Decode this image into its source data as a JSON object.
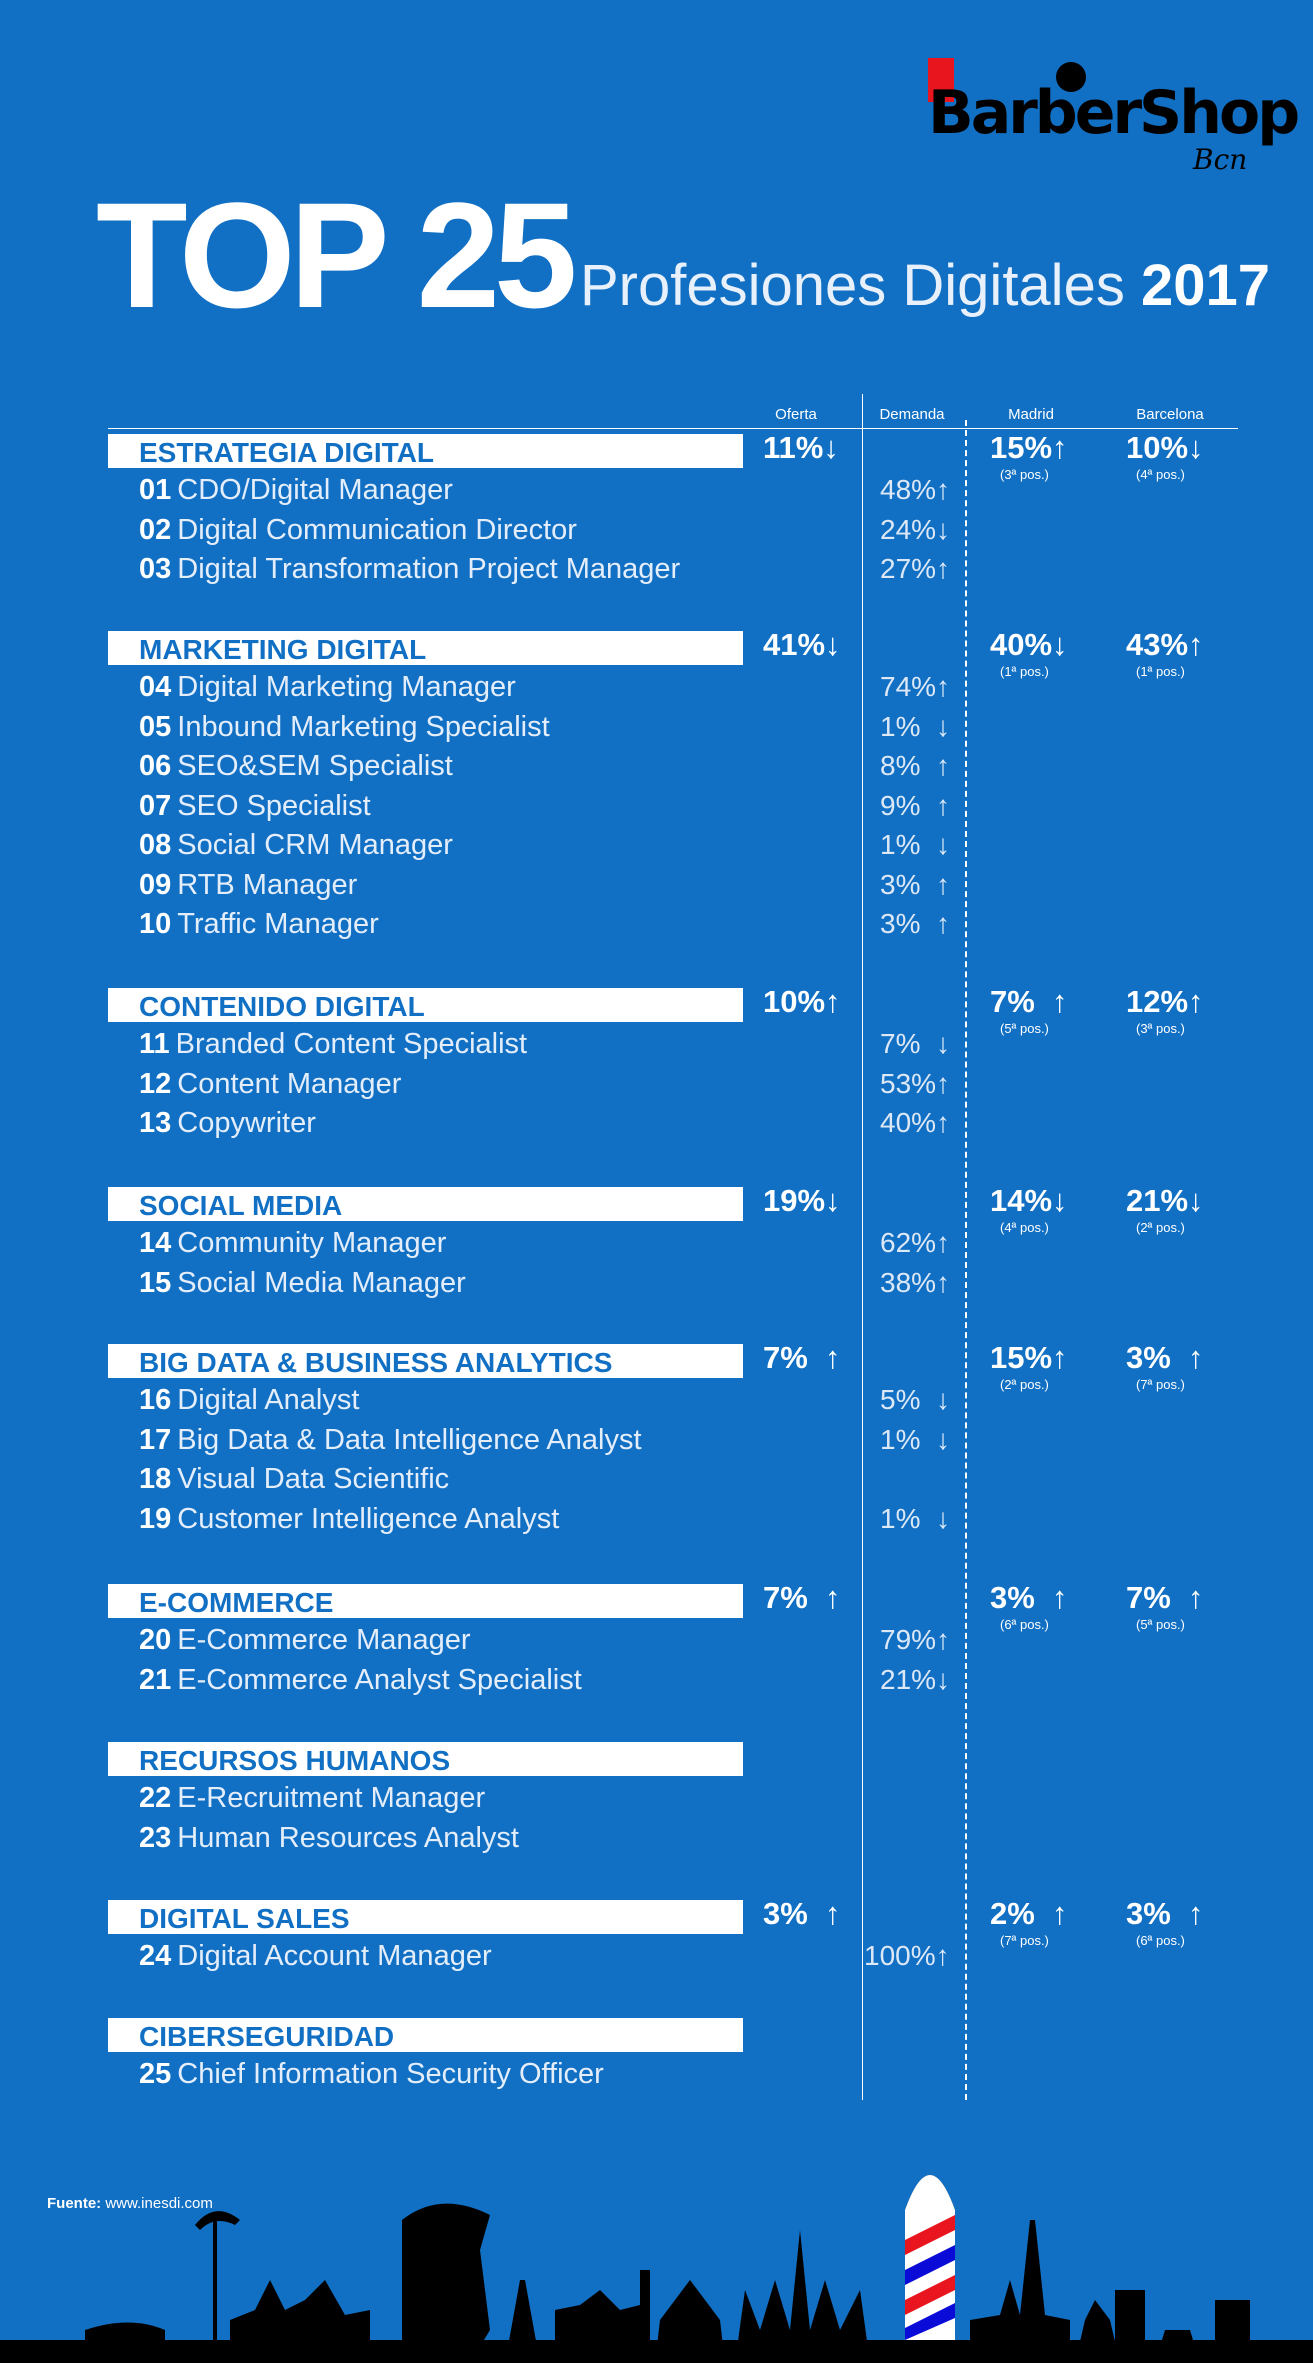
{
  "logo": {
    "main": "BarberShop",
    "sub": "Bcn"
  },
  "title": "TOP 25",
  "subtitle": "Profesiones Digitales",
  "year": "2017",
  "columns": {
    "oferta": "Oferta",
    "demanda": "Demanda",
    "madrid": "Madrid",
    "barcelona": "Barcelona"
  },
  "categories": [
    {
      "name": "ESTRATEGIA DIGITAL",
      "oferta": "11%↓",
      "madrid": "15%↑",
      "madrid_pos": "(3ª pos.)",
      "barcelona": "10%↓",
      "barcelona_pos": "(4ª pos.)",
      "jobs": [
        {
          "num": "01",
          "name": "CDO/Digital Manager",
          "demanda": "48%↑"
        },
        {
          "num": "02",
          "name": "Digital Communication Director",
          "demanda": "24%↓"
        },
        {
          "num": "03",
          "name": "Digital Transformation Project Manager",
          "demanda": "27%↑"
        }
      ]
    },
    {
      "name": "MARKETING DIGITAL",
      "oferta": "41%↓",
      "madrid": "40%↓",
      "madrid_pos": "(1ª pos.)",
      "barcelona": "43%↑",
      "barcelona_pos": "(1ª pos.)",
      "jobs": [
        {
          "num": "04",
          "name": "Digital Marketing Manager",
          "demanda": "74%↑"
        },
        {
          "num": "05",
          "name": "Inbound Marketing Specialist",
          "demanda": "1%  ↓"
        },
        {
          "num": "06",
          "name": "SEO&SEM Specialist",
          "demanda": "8%  ↑"
        },
        {
          "num": "07",
          "name": "SEO Specialist",
          "demanda": "9%  ↑"
        },
        {
          "num": "08",
          "name": "Social CRM Manager",
          "demanda": "1%  ↓"
        },
        {
          "num": "09",
          "name": "RTB Manager",
          "demanda": "3%  ↑"
        },
        {
          "num": "10",
          "name": "Traffic Manager",
          "demanda": "3%  ↑"
        }
      ]
    },
    {
      "name": "CONTENIDO DIGITAL",
      "oferta": "10%↑",
      "madrid": "7%  ↑",
      "madrid_pos": "(5ª pos.)",
      "barcelona": "12%↑",
      "barcelona_pos": "(3ª pos.)",
      "jobs": [
        {
          "num": "11",
          "name": "Branded Content Specialist",
          "demanda": "7%  ↓"
        },
        {
          "num": "12",
          "name": "Content Manager",
          "demanda": "53%↑"
        },
        {
          "num": "13",
          "name": "Copywriter",
          "demanda": "40%↑"
        }
      ]
    },
    {
      "name": "SOCIAL MEDIA",
      "oferta": "19%↓",
      "madrid": "14%↓",
      "madrid_pos": "(4ª pos.)",
      "barcelona": "21%↓",
      "barcelona_pos": "(2ª pos.)",
      "jobs": [
        {
          "num": "14",
          "name": "Community Manager",
          "demanda": "62%↑"
        },
        {
          "num": "15",
          "name": "Social Media Manager",
          "demanda": "38%↑"
        }
      ]
    },
    {
      "name": "BIG DATA & BUSINESS ANALYTICS",
      "oferta": "7%  ↑",
      "madrid": "15%↑",
      "madrid_pos": "(2ª pos.)",
      "barcelona": "3%  ↑",
      "barcelona_pos": "(7ª pos.)",
      "jobs": [
        {
          "num": "16",
          "name": "Digital Analyst",
          "demanda": "5%  ↓"
        },
        {
          "num": "17",
          "name": "Big Data & Data Intelligence Analyst",
          "demanda": "1%  ↓"
        },
        {
          "num": "18",
          "name": "Visual Data Scientific",
          "demanda": ""
        },
        {
          "num": "19",
          "name": "Customer Intelligence Analyst",
          "demanda": "1%  ↓"
        }
      ]
    },
    {
      "name": "E-COMMERCE",
      "oferta": "7%  ↑",
      "madrid": "3%  ↑",
      "madrid_pos": "(6ª pos.)",
      "barcelona": "7%  ↑",
      "barcelona_pos": "(5ª pos.)",
      "jobs": [
        {
          "num": "20",
          "name": "E-Commerce Manager",
          "demanda": "79%↑"
        },
        {
          "num": "21",
          "name": "E-Commerce Analyst Specialist",
          "demanda": "21%↓"
        }
      ]
    },
    {
      "name": "RECURSOS HUMANOS",
      "oferta": "",
      "madrid": "",
      "madrid_pos": "",
      "barcelona": "",
      "barcelona_pos": "",
      "jobs": [
        {
          "num": "22",
          "name": "E-Recruitment Manager",
          "demanda": ""
        },
        {
          "num": "23",
          "name": "Human Resources Analyst",
          "demanda": ""
        }
      ]
    },
    {
      "name": "DIGITAL SALES",
      "oferta": "3%  ↑",
      "madrid": "2%  ↑",
      "madrid_pos": "(7ª pos.)",
      "barcelona": "3%  ↑",
      "barcelona_pos": "(6ª pos.)",
      "jobs": [
        {
          "num": "24",
          "name": "Digital Account Manager",
          "demanda": "100%↑"
        }
      ]
    },
    {
      "name": "CIBERSEGURIDAD",
      "oferta": "",
      "madrid": "",
      "madrid_pos": "",
      "barcelona": "",
      "barcelona_pos": "",
      "jobs": [
        {
          "num": "25",
          "name": "Chief Information Security Officer",
          "demanda": ""
        }
      ]
    }
  ],
  "source": {
    "label": "Fuente:",
    "value": "www.inesdi.com"
  },
  "colors": {
    "background": "#1270c4",
    "category_text": "#1270c4",
    "skyline": "#000000",
    "tower_red": "#e8141e",
    "tower_blue": "#0b0bd8"
  }
}
